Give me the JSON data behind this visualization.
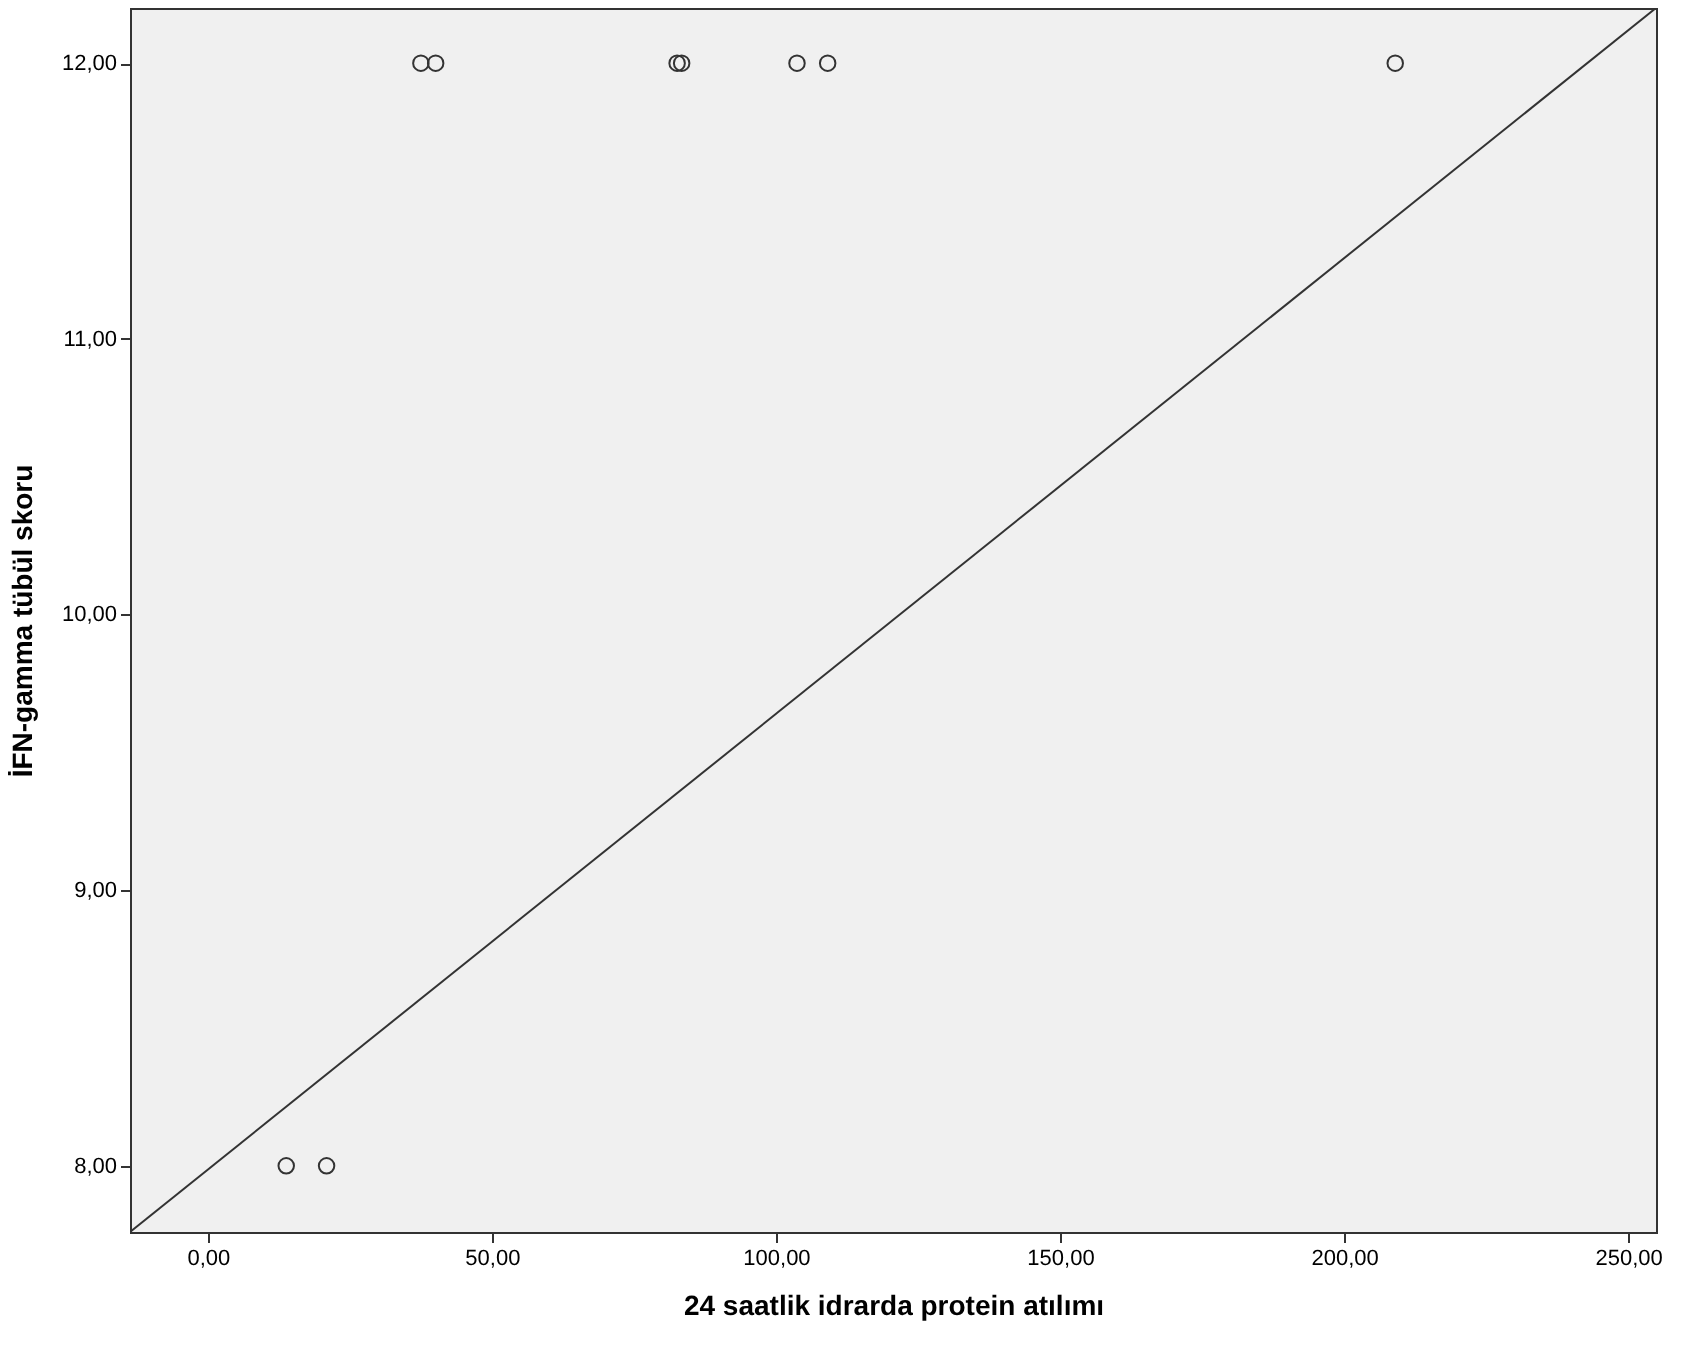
{
  "chart_data": {
    "type": "scatter",
    "xlabel": "24 saatlik idrarda protein atılımı",
    "ylabel": "İFN-gamma tübül skoru",
    "xlim": [
      -13.7,
      254.9
    ],
    "ylim": [
      7.76,
      12.2
    ],
    "xticks": [
      {
        "value": 0,
        "label": "0,00"
      },
      {
        "value": 50,
        "label": "50,00"
      },
      {
        "value": 100,
        "label": "100,00"
      },
      {
        "value": 150,
        "label": "150,00"
      },
      {
        "value": 200,
        "label": "200,00"
      },
      {
        "value": 250,
        "label": "250,00"
      }
    ],
    "yticks": [
      {
        "value": 8,
        "label": "8,00"
      },
      {
        "value": 9,
        "label": "9,00"
      },
      {
        "value": 10,
        "label": "10,00"
      },
      {
        "value": 11,
        "label": "11,00"
      },
      {
        "value": 12,
        "label": "12,00"
      }
    ],
    "grid": false,
    "series": [
      {
        "color": "#333333",
        "marker": "circle",
        "x": [
          13.8,
          20.9,
          37.5,
          40.1,
          82.6,
          83.4,
          103.7,
          109.1,
          209
        ],
        "values": [
          8,
          8,
          12,
          12,
          12,
          12,
          12,
          12,
          12
        ]
      },
      {
        "type": "line",
        "color": "#333333",
        "x": [
          -13.7,
          254.9
        ],
        "values": [
          7.76,
          12.2
        ]
      }
    ]
  }
}
